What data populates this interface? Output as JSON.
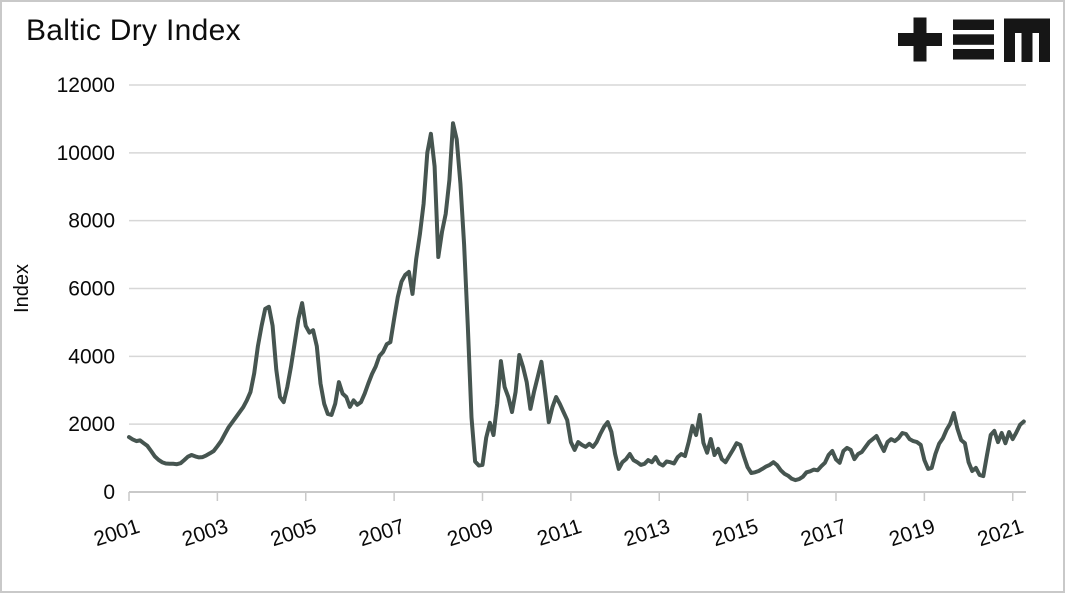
{
  "header": {
    "title": "Baltic Dry Index"
  },
  "logo": {
    "name": "tem-logo",
    "glyphs": [
      "plus",
      "triple-bar",
      "block-m"
    ],
    "color": "#161616"
  },
  "chart_data": {
    "type": "line",
    "title": "Baltic Dry Index",
    "xlabel": "",
    "ylabel": "Index",
    "ylim": [
      0,
      12000
    ],
    "xlim": [
      2001,
      2021.3
    ],
    "yticks": [
      0,
      2000,
      4000,
      6000,
      8000,
      10000,
      12000
    ],
    "xticks": [
      2001,
      2003,
      2005,
      2007,
      2009,
      2011,
      2013,
      2015,
      2017,
      2019,
      2021
    ],
    "grid": "horizontal-only",
    "legend": "none",
    "x_tick_rotation_deg": -18,
    "colors": {
      "line": "#465550",
      "grid": "#d7d7d7",
      "axis": "#c9c9c9",
      "text": "#0a0a0a"
    },
    "series": [
      {
        "name": "Baltic Dry Index",
        "frequency": "monthly",
        "start": "2001-01",
        "end": "2021-04",
        "values": [
          1620,
          1550,
          1500,
          1520,
          1440,
          1360,
          1210,
          1050,
          950,
          880,
          840,
          830,
          830,
          820,
          850,
          940,
          1040,
          1090,
          1050,
          1020,
          1030,
          1080,
          1140,
          1210,
          1350,
          1500,
          1700,
          1900,
          2050,
          2200,
          2350,
          2500,
          2700,
          2950,
          3500,
          4300,
          4900,
          5400,
          5460,
          4900,
          3600,
          2800,
          2650,
          3100,
          3700,
          4400,
          5100,
          5570,
          4900,
          4700,
          4770,
          4300,
          3200,
          2600,
          2300,
          2270,
          2600,
          3240,
          2900,
          2800,
          2510,
          2700,
          2570,
          2650,
          2900,
          3200,
          3480,
          3700,
          4010,
          4130,
          4360,
          4420,
          5100,
          5750,
          6200,
          6400,
          6490,
          5840,
          6870,
          7600,
          8500,
          10000,
          10560,
          9600,
          6930,
          7670,
          8200,
          9200,
          10870,
          10400,
          9100,
          7300,
          4900,
          2200,
          900,
          780,
          800,
          1600,
          2040,
          1680,
          2600,
          3860,
          3100,
          2800,
          2360,
          2950,
          4040,
          3690,
          3240,
          2450,
          2950,
          3390,
          3840,
          2950,
          2060,
          2510,
          2800,
          2600,
          2360,
          2120,
          1470,
          1240,
          1470,
          1390,
          1330,
          1420,
          1330,
          1470,
          1710,
          1920,
          2060,
          1770,
          1120,
          680,
          880,
          970,
          1120,
          940,
          880,
          800,
          830,
          940,
          880,
          1030,
          840,
          780,
          900,
          880,
          840,
          1030,
          1120,
          1060,
          1470,
          1950,
          1680,
          2270,
          1450,
          1160,
          1560,
          1090,
          1270,
          970,
          880,
          1060,
          1240,
          1440,
          1390,
          1050,
          730,
          560,
          580,
          620,
          680,
          750,
          800,
          880,
          790,
          640,
          540,
          480,
          390,
          350,
          380,
          450,
          580,
          610,
          660,
          640,
          760,
          860,
          1090,
          1210,
          960,
          860,
          1210,
          1300,
          1240,
          970,
          1120,
          1180,
          1330,
          1470,
          1560,
          1650,
          1420,
          1210,
          1470,
          1560,
          1500,
          1590,
          1740,
          1710,
          1560,
          1500,
          1470,
          1390,
          940,
          680,
          710,
          1120,
          1420,
          1580,
          1830,
          2010,
          2330,
          1860,
          1530,
          1440,
          880,
          620,
          710,
          500,
          470,
          1090,
          1680,
          1800,
          1470,
          1740,
          1440,
          1770,
          1560,
          1760,
          1980,
          2080
        ]
      }
    ]
  }
}
